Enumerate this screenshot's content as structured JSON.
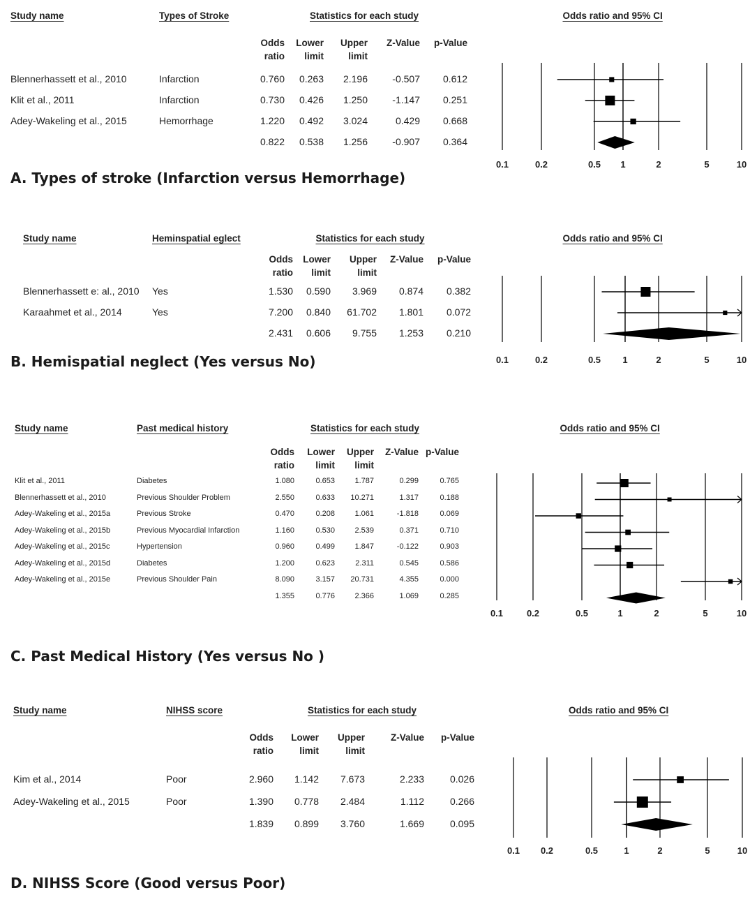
{
  "chart_data": [
    {
      "type": "forest",
      "caption": "A. Types of stroke (Infarction versus Hemorrhage)",
      "headers": {
        "study": "Study name",
        "group": "Types of Stroke",
        "stats": "Statistics for each study",
        "plot": "Odds ratio and 95% CI",
        "cols": [
          "Odds ratio",
          "Lower limit",
          "Upper limit",
          "Z-Value",
          "p-Value"
        ]
      },
      "x_scale": "log",
      "x_ticks": [
        "0.1",
        "0.2",
        "0.5",
        "1",
        "2",
        "5",
        "10"
      ],
      "rows": [
        {
          "study": "Blennerhassett et al., 2010",
          "group": "Infarction",
          "or": "0.760",
          "lower": "0.263",
          "upper": "2.196",
          "z": "-0.507",
          "p": "0.612"
        },
        {
          "study": "Klit et al., 2011",
          "group": "Infarction",
          "or": "0.730",
          "lower": "0.426",
          "upper": "1.250",
          "z": "-1.147",
          "p": "0.251"
        },
        {
          "study": "Adey-Wakeling et al., 2015",
          "group": "Hemorrhage",
          "or": "1.220",
          "lower": "0.492",
          "upper": "3.024",
          "z": "0.429",
          "p": "0.668"
        }
      ],
      "pooled": {
        "or": "0.822",
        "lower": "0.538",
        "upper": "1.256",
        "z": "-0.907",
        "p": "0.364"
      }
    },
    {
      "type": "forest",
      "caption": "B. Hemispatial neglect (Yes versus No)",
      "headers": {
        "study": "Study name",
        "group": "Heminspatial eglect",
        "stats": "Statistics for each study",
        "plot": "Odds ratio and 95% CI",
        "cols": [
          "Odds ratio",
          "Lower limit",
          "Upper limit",
          "Z-Value",
          "p-Value"
        ]
      },
      "x_scale": "log",
      "x_ticks": [
        "0.1",
        "0.2",
        "0.5",
        "1",
        "2",
        "5",
        "10"
      ],
      "rows": [
        {
          "study": "Blennerhassett e: al., 2010",
          "group": "Yes",
          "or": "1.530",
          "lower": "0.590",
          "upper": "3.969",
          "z": "0.874",
          "p": "0.382"
        },
        {
          "study": "Karaahmet et al., 2014",
          "group": "Yes",
          "or": "7.200",
          "lower": "0.840",
          "upper": "61.702",
          "z": "1.801",
          "p": "0.072"
        }
      ],
      "pooled": {
        "or": "2.431",
        "lower": "0.606",
        "upper": "9.755",
        "z": "1.253",
        "p": "0.210"
      }
    },
    {
      "type": "forest",
      "caption": "C. Past Medical History (Yes versus No )",
      "headers": {
        "study": "Study name",
        "group": "Past medical history",
        "stats": "Statistics for each study",
        "plot": "Odds ratio and 95% CI",
        "cols": [
          "Odds ratio",
          "Lower limit",
          "Upper limit",
          "Z-Value",
          "p-Value"
        ]
      },
      "x_scale": "log",
      "x_ticks": [
        "0.1",
        "0.2",
        "0.5",
        "1",
        "2",
        "5",
        "10"
      ],
      "rows": [
        {
          "study": "Klit et al., 2011",
          "group": "Diabetes",
          "or": "1.080",
          "lower": "0.653",
          "upper": "1.787",
          "z": "0.299",
          "p": "0.765"
        },
        {
          "study": "Blennerhassett et al., 2010",
          "group": "Previous Shoulder Problem",
          "or": "2.550",
          "lower": "0.633",
          "upper": "10.271",
          "z": "1.317",
          "p": "0.188"
        },
        {
          "study": "Adey-Wakeling et al., 2015a",
          "group": "Previous Stroke",
          "or": "0.470",
          "lower": "0.208",
          "upper": "1.061",
          "z": "-1.818",
          "p": "0.069"
        },
        {
          "study": "Adey-Wakeling et al., 2015b",
          "group": "Previous Myocardial Infarction",
          "or": "1.160",
          "lower": "0.530",
          "upper": "2.539",
          "z": "0.371",
          "p": "0.710"
        },
        {
          "study": "Adey-Wakeling et al., 2015c",
          "group": "Hypertension",
          "or": "0.960",
          "lower": "0.499",
          "upper": "1.847",
          "z": "-0.122",
          "p": "0.903"
        },
        {
          "study": "Adey-Wakeling et al., 2015d",
          "group": "Diabetes",
          "or": "1.200",
          "lower": "0.623",
          "upper": "2.311",
          "z": "0.545",
          "p": "0.586"
        },
        {
          "study": "Adey-Wakeling et al., 2015e",
          "group": "Previous Shoulder Pain",
          "or": "8.090",
          "lower": "3.157",
          "upper": "20.731",
          "z": "4.355",
          "p": "0.000"
        }
      ],
      "pooled": {
        "or": "1.355",
        "lower": "0.776",
        "upper": "2.366",
        "z": "1.069",
        "p": "0.285"
      }
    },
    {
      "type": "forest",
      "caption": "D. NIHSS Score (Good versus Poor)",
      "headers": {
        "study": "Study name",
        "group": "NIHSS score",
        "stats": "Statistics for each study",
        "plot": "Odds ratio and 95% CI",
        "cols": [
          "Odds ratio",
          "Lower limit",
          "Upper limit",
          "Z-Value",
          "p-Value"
        ]
      },
      "x_scale": "log",
      "x_ticks": [
        "0.1",
        "0.2",
        "0.5",
        "1",
        "2",
        "5",
        "10"
      ],
      "rows": [
        {
          "study": "Kim et al., 2014",
          "group": "Poor",
          "or": "2.960",
          "lower": "1.142",
          "upper": "7.673",
          "z": "2.233",
          "p": "0.026"
        },
        {
          "study": "Adey-Wakeling et al., 2015",
          "group": "Poor",
          "or": "1.390",
          "lower": "0.778",
          "upper": "2.484",
          "z": "1.112",
          "p": "0.266"
        }
      ],
      "pooled": {
        "or": "1.839",
        "lower": "0.899",
        "upper": "3.760",
        "z": "1.669",
        "p": "0.095"
      }
    }
  ]
}
